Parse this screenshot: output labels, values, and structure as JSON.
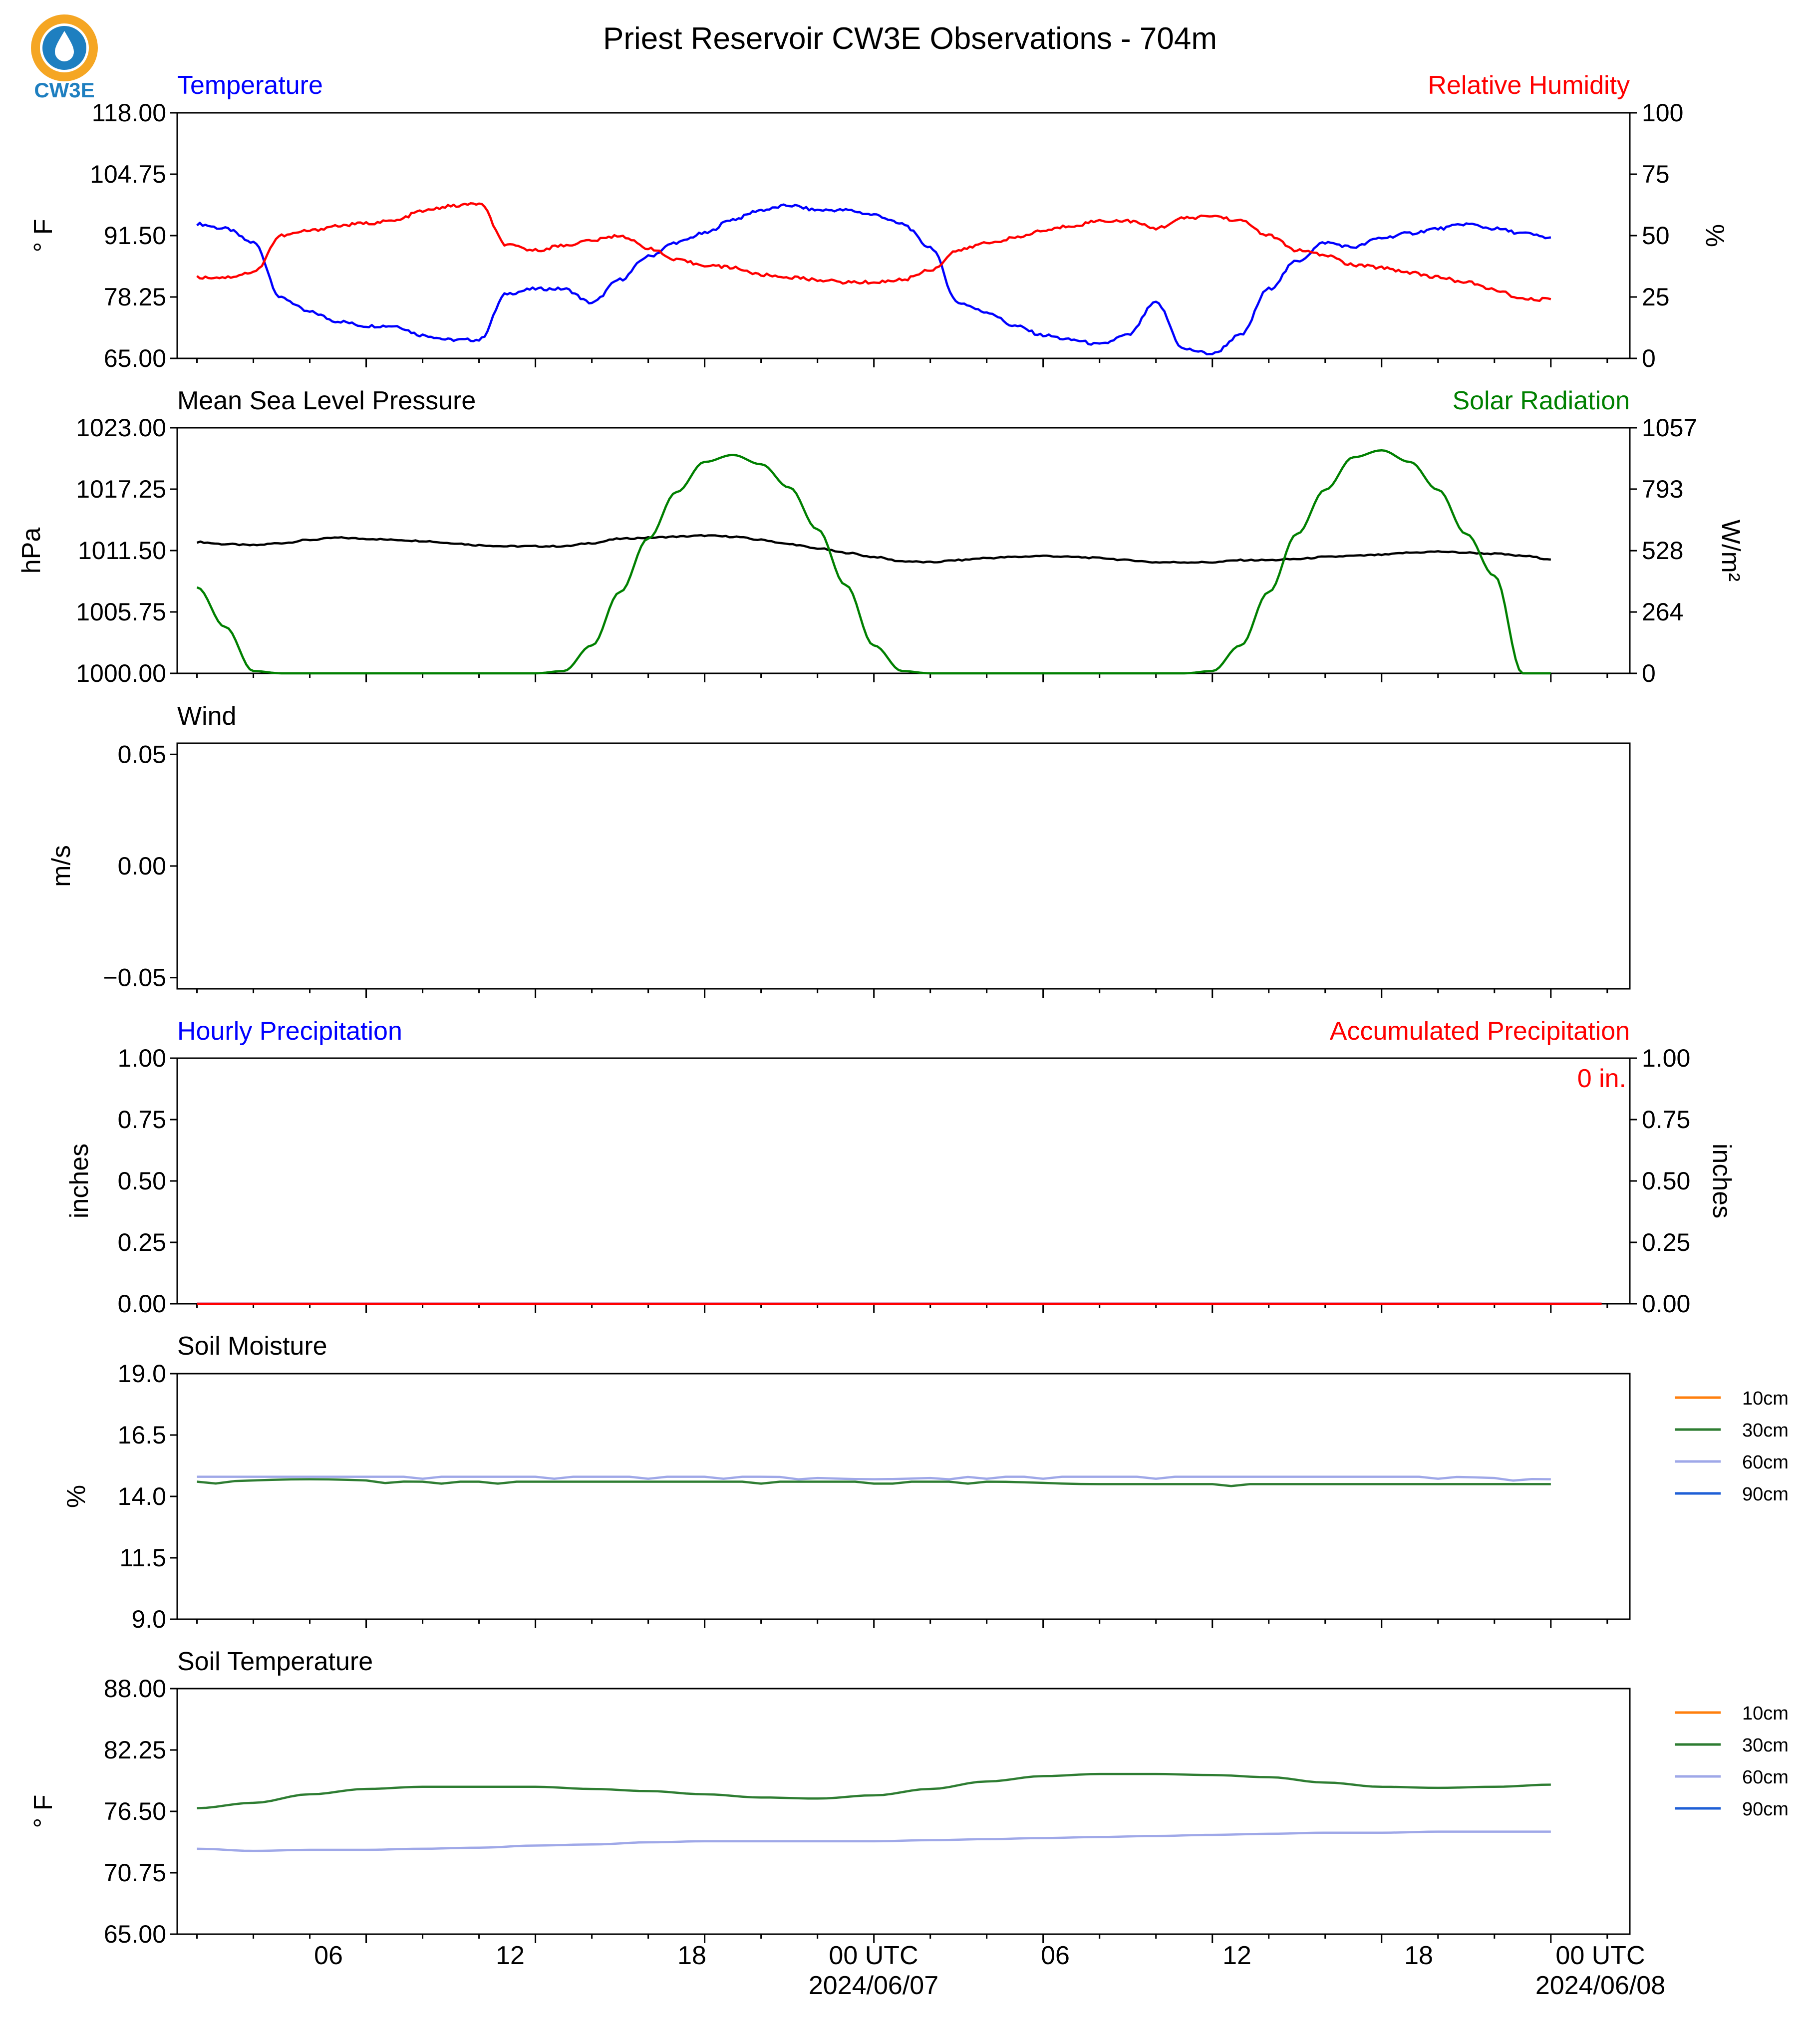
{
  "figure": {
    "title": "Priest Reservoir CW3E Observations - 704m",
    "logo_text": "CW3E"
  },
  "colors": {
    "temperature": "#0000ff",
    "humidity": "#ff0000",
    "pressure": "#000000",
    "solar": "#008000",
    "precip_hourly": "#0000ff",
    "precip_accum": "#ff0000",
    "soil_10cm": "#ff7f0e",
    "soil_30cm": "#2e7d32",
    "soil_60cm": "#9fa8e8",
    "soil_90cm": "#1f5fd6",
    "logo_orange": "#f5a623",
    "logo_blue": "#1e7fc0"
  },
  "time_axis": {
    "tick_labels": [
      "06",
      "12",
      "18",
      "00 UTC",
      "06",
      "12",
      "18",
      "00 UTC"
    ],
    "date_labels": [
      "2024/06/07",
      "2024/06/08"
    ]
  },
  "chart_data": [
    {
      "type": "line",
      "panel": "temperature-humidity",
      "left_title": "Temperature",
      "right_title": "Relative Humidity",
      "ylabel_left": "° F",
      "ylabel_right": "%",
      "ylim_left": [
        65.0,
        118.0
      ],
      "ylim_right": [
        0,
        100
      ],
      "yticks_left": [
        "118.00",
        "104.75",
        "91.50",
        "78.25",
        "65.00"
      ],
      "yticks_right": [
        "100",
        "75",
        "50",
        "25",
        "0"
      ],
      "x_hours": [
        0,
        1,
        2,
        3,
        4,
        5,
        6,
        7,
        8,
        9,
        10,
        11,
        12,
        13,
        14,
        15,
        16,
        17,
        18,
        19,
        20,
        21,
        22,
        23,
        24,
        25,
        26,
        27,
        28,
        29,
        30,
        31,
        32,
        33,
        34,
        35,
        36,
        37,
        38,
        39,
        40,
        41,
        42,
        43,
        44,
        45,
        46,
        47,
        48
      ],
      "series": [
        {
          "name": "Temperature",
          "axis": "left",
          "values": [
            94,
            93,
            90,
            78,
            75,
            73,
            72,
            72,
            70,
            69,
            69,
            79,
            80,
            80,
            77,
            82,
            87,
            90,
            92,
            95,
            97,
            98,
            97,
            97,
            96,
            94,
            89,
            77,
            75,
            72,
            70,
            69,
            68,
            70,
            77,
            67,
            66,
            70,
            80,
            86,
            90,
            89,
            91,
            92,
            93,
            94,
            93,
            92,
            91
          ]
        },
        {
          "name": "Relative Humidity",
          "axis": "right",
          "values": [
            33,
            33,
            35,
            50,
            52,
            54,
            55,
            56,
            60,
            62,
            63,
            46,
            44,
            46,
            48,
            50,
            45,
            40,
            38,
            37,
            34,
            33,
            32,
            31,
            31,
            32,
            36,
            44,
            47,
            49,
            52,
            54,
            56,
            56,
            53,
            57,
            58,
            56,
            50,
            44,
            42,
            38,
            37,
            35,
            33,
            31,
            28,
            24,
            24
          ]
        }
      ]
    },
    {
      "type": "line",
      "panel": "pressure-solar",
      "left_title": "Mean Sea Level Pressure",
      "right_title": "Solar Radiation",
      "ylabel_left": "hPa",
      "ylabel_right": "W/m²",
      "ylim_left": [
        1000.0,
        1023.0
      ],
      "ylim_right": [
        0,
        1057
      ],
      "yticks_left": [
        "1023.00",
        "1017.25",
        "1011.50",
        "1005.75",
        "1000.00"
      ],
      "yticks_right": [
        "1057",
        "793",
        "528",
        "264",
        "0"
      ],
      "x_hours": [
        0,
        1,
        2,
        3,
        4,
        5,
        6,
        7,
        8,
        9,
        10,
        11,
        12,
        13,
        14,
        15,
        16,
        17,
        18,
        19,
        20,
        21,
        22,
        23,
        24,
        25,
        26,
        27,
        28,
        29,
        30,
        31,
        32,
        33,
        34,
        35,
        36,
        37,
        38,
        39,
        40,
        41,
        42,
        43,
        44,
        45,
        46,
        47,
        48
      ],
      "series": [
        {
          "name": "Mean Sea Level Pressure",
          "axis": "left",
          "values": [
            1012.3,
            1012.1,
            1012.0,
            1012.2,
            1012.5,
            1012.7,
            1012.6,
            1012.5,
            1012.4,
            1012.2,
            1012.0,
            1011.9,
            1011.9,
            1011.9,
            1012.2,
            1012.6,
            1012.7,
            1012.8,
            1012.9,
            1012.8,
            1012.5,
            1012.1,
            1011.7,
            1011.3,
            1010.9,
            1010.5,
            1010.4,
            1010.6,
            1010.8,
            1010.9,
            1011.0,
            1010.9,
            1010.8,
            1010.6,
            1010.4,
            1010.4,
            1010.4,
            1010.6,
            1010.6,
            1010.7,
            1010.9,
            1011.0,
            1011.1,
            1011.3,
            1011.4,
            1011.3,
            1011.2,
            1011.0,
            1010.7
          ]
        },
        {
          "name": "Solar Radiation",
          "axis": "right",
          "values": [
            370,
            200,
            10,
            0,
            0,
            0,
            0,
            0,
            0,
            0,
            0,
            0,
            0,
            10,
            120,
            350,
            580,
            780,
            910,
            940,
            900,
            800,
            620,
            380,
            120,
            10,
            0,
            0,
            0,
            0,
            0,
            0,
            0,
            0,
            0,
            0,
            10,
            120,
            350,
            600,
            790,
            930,
            960,
            910,
            790,
            600,
            420,
            0,
            0
          ]
        }
      ]
    },
    {
      "type": "line",
      "panel": "wind",
      "left_title": "Wind",
      "ylabel_left": "m/s",
      "ylim_left": [
        -0.055,
        0.055
      ],
      "yticks_left": [
        "0.05",
        "0.00",
        "−0.05"
      ],
      "series": []
    },
    {
      "type": "line",
      "panel": "precipitation",
      "left_title": "Hourly Precipitation",
      "right_title": "Accumulated Precipitation",
      "ylabel_left": "inches",
      "ylabel_right": "inches",
      "ylim_left": [
        0.0,
        1.0
      ],
      "ylim_right": [
        0.0,
        1.0
      ],
      "yticks_left": [
        "1.00",
        "0.75",
        "0.50",
        "0.25",
        "0.00"
      ],
      "yticks_right": [
        "1.00",
        "0.75",
        "0.50",
        "0.25",
        "0.00"
      ],
      "annotation": "0 in.",
      "series": [
        {
          "name": "Hourly Precipitation",
          "axis": "left",
          "values": [
            0,
            0
          ]
        },
        {
          "name": "Accumulated Precipitation",
          "axis": "right",
          "values": [
            0,
            0
          ]
        }
      ]
    },
    {
      "type": "line",
      "panel": "soil-moisture",
      "left_title": "Soil Moisture",
      "ylabel_left": "%",
      "ylim_left": [
        9.0,
        19.0
      ],
      "yticks_left": [
        "19.0",
        "16.5",
        "14.0",
        "11.5",
        "9.0"
      ],
      "legend": [
        "10cm",
        "30cm",
        "60cm",
        "90cm"
      ],
      "x_hours": [
        0,
        4,
        8,
        12,
        16,
        20,
        24,
        28,
        32,
        36,
        40,
        44,
        48
      ],
      "series": [
        {
          "name": "30cm",
          "values": [
            14.6,
            14.7,
            14.6,
            14.6,
            14.6,
            14.6,
            14.6,
            14.6,
            14.5,
            14.5,
            14.5,
            14.5,
            14.5
          ]
        },
        {
          "name": "60cm",
          "values": [
            14.8,
            14.8,
            14.8,
            14.8,
            14.8,
            14.8,
            14.7,
            14.8,
            14.8,
            14.8,
            14.8,
            14.8,
            14.7
          ]
        }
      ]
    },
    {
      "type": "line",
      "panel": "soil-temperature",
      "left_title": "Soil Temperature",
      "ylabel_left": "° F",
      "ylim_left": [
        65.0,
        88.0
      ],
      "yticks_left": [
        "88.00",
        "82.25",
        "76.50",
        "70.75",
        "65.00"
      ],
      "legend": [
        "10cm",
        "30cm",
        "60cm",
        "90cm"
      ],
      "x_hours": [
        0,
        2,
        4,
        6,
        8,
        10,
        12,
        14,
        16,
        18,
        20,
        22,
        24,
        26,
        28,
        30,
        32,
        34,
        36,
        38,
        40,
        42,
        44,
        46,
        48
      ],
      "series": [
        {
          "name": "30cm",
          "values": [
            76.8,
            77.3,
            78.1,
            78.6,
            78.8,
            78.8,
            78.8,
            78.6,
            78.4,
            78.1,
            77.8,
            77.7,
            78.0,
            78.6,
            79.3,
            79.8,
            80.0,
            80.0,
            79.9,
            79.7,
            79.2,
            78.8,
            78.7,
            78.8,
            79.0
          ]
        },
        {
          "name": "60cm",
          "values": [
            73.0,
            72.8,
            72.9,
            72.9,
            73.0,
            73.1,
            73.3,
            73.4,
            73.6,
            73.7,
            73.7,
            73.7,
            73.7,
            73.8,
            73.9,
            74.0,
            74.1,
            74.2,
            74.3,
            74.4,
            74.5,
            74.5,
            74.6,
            74.6,
            74.6
          ]
        }
      ]
    }
  ]
}
